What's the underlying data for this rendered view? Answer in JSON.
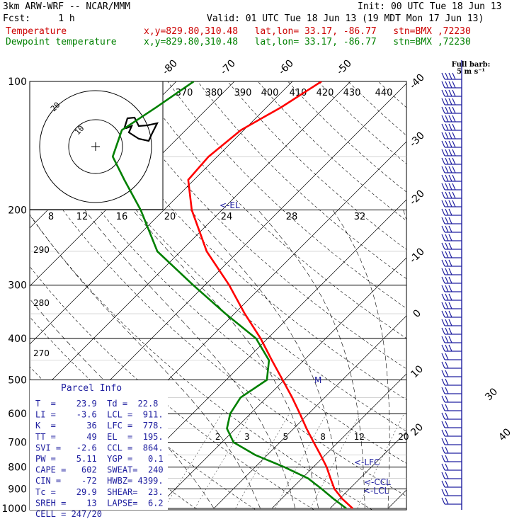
{
  "header": {
    "model": "3km ARW-WRF -- NCAR/MMM",
    "init": "Init: 00 UTC Tue 18 Jun 13",
    "fcst": "Fcst:     1 h",
    "valid": "Valid: 01 UTC Tue 18 Jun 13 (19 MDT Mon 17 Jun 13)",
    "temp_label": "Temperature",
    "temp_info": "x,y=829.80,310.48   lat,lon= 33.17, -86.77   stn=BMX ,72230",
    "dew_label": "Dewpoint temperature",
    "dew_info": "x,y=829.80,310.48   lat,lon= 33.17, -86.77   stn=BMX ,72230"
  },
  "colors": {
    "temperature": "#ff0000",
    "dewpoint": "#008000",
    "header_red": "#cc0000",
    "header_green": "#008000",
    "wind": "#2020a0",
    "annot": "#2020a0"
  },
  "barb_legend": [
    "Full barb:",
    "5 m s⁻¹"
  ],
  "hodograph": {
    "units": "kts",
    "ring_labels": [
      "10",
      "20"
    ]
  },
  "parcel_info": {
    "title": "Parcel Info",
    "rows": [
      "T  =    23.9  Td =  22.8",
      "LI =    -3.6  LCL =  911.",
      "K  =      36  LFC =  778.",
      "TT =      49  EL  =  195.",
      "SVI =   -2.6  CCL =  864.",
      "PW =    5.11  YGP =   0.1",
      "CAPE =   602  SWEAT=  240",
      "CIN =    -72  HWBZ= 4399.",
      "Tc =    29.9  SHEAR=  23.",
      "SREH =    13  LAPSE=  6.2",
      "CELL = 247/20"
    ]
  },
  "chart_data": {
    "type": "line",
    "title": "",
    "pressure_levels": [
      1000,
      900,
      800,
      700,
      600,
      500,
      400,
      300,
      200,
      100
    ],
    "pressure_labels": [
      "1000",
      "900",
      "800",
      "700",
      "600",
      "500",
      "400",
      "300",
      "200",
      "100"
    ],
    "isotherm_labels": [
      "-80",
      "-70",
      "-60",
      "-50",
      "-40",
      "-30",
      "-20",
      "-10",
      "0",
      "10",
      "20",
      "30",
      "40"
    ],
    "theta_labels": [
      "370",
      "380",
      "390",
      "400",
      "410",
      "420",
      "430",
      "440"
    ],
    "mixing_ratio_labels": [
      "2",
      "3",
      "5",
      "8",
      "12",
      "20"
    ],
    "theta_e_labels": [
      "290",
      "280",
      "270"
    ],
    "wind_speed_labels": [
      "8",
      "12",
      "16",
      "20",
      "24",
      "28",
      "32"
    ],
    "annotations": [
      "<-EL",
      "<-LFC",
      "<-CCL",
      "<-LCL",
      "M"
    ],
    "series": [
      {
        "name": "Temperature",
        "pressure": [
          1000,
          950,
          900,
          850,
          800,
          750,
          700,
          650,
          600,
          550,
          500,
          450,
          400,
          350,
          300,
          250,
          200,
          170,
          150,
          130,
          115,
          100
        ],
        "temp_c": [
          23.9,
          20.5,
          17.4,
          14.9,
          12.3,
          9.2,
          5.8,
          2.2,
          -1.5,
          -5.6,
          -10.3,
          -15.5,
          -21.2,
          -28.2,
          -35.8,
          -45.5,
          -55.2,
          -61.0,
          -61.5,
          -60.5,
          -57.5,
          -55.0
        ]
      },
      {
        "name": "Dewpoint temperature",
        "pressure": [
          1000,
          950,
          900,
          850,
          800,
          750,
          700,
          650,
          600,
          550,
          500,
          450,
          400,
          350,
          300,
          250,
          200,
          170,
          150,
          130,
          115,
          100
        ],
        "temp_c": [
          22.8,
          19.0,
          15.2,
          11.0,
          5.0,
          -2.0,
          -8.0,
          -11.5,
          -13.5,
          -14.5,
          -13.0,
          -16.0,
          -22.0,
          -31.5,
          -42.0,
          -54.0,
          -64.0,
          -72.0,
          -78.0,
          -81.0,
          -79.0,
          -77.0
        ]
      }
    ]
  }
}
